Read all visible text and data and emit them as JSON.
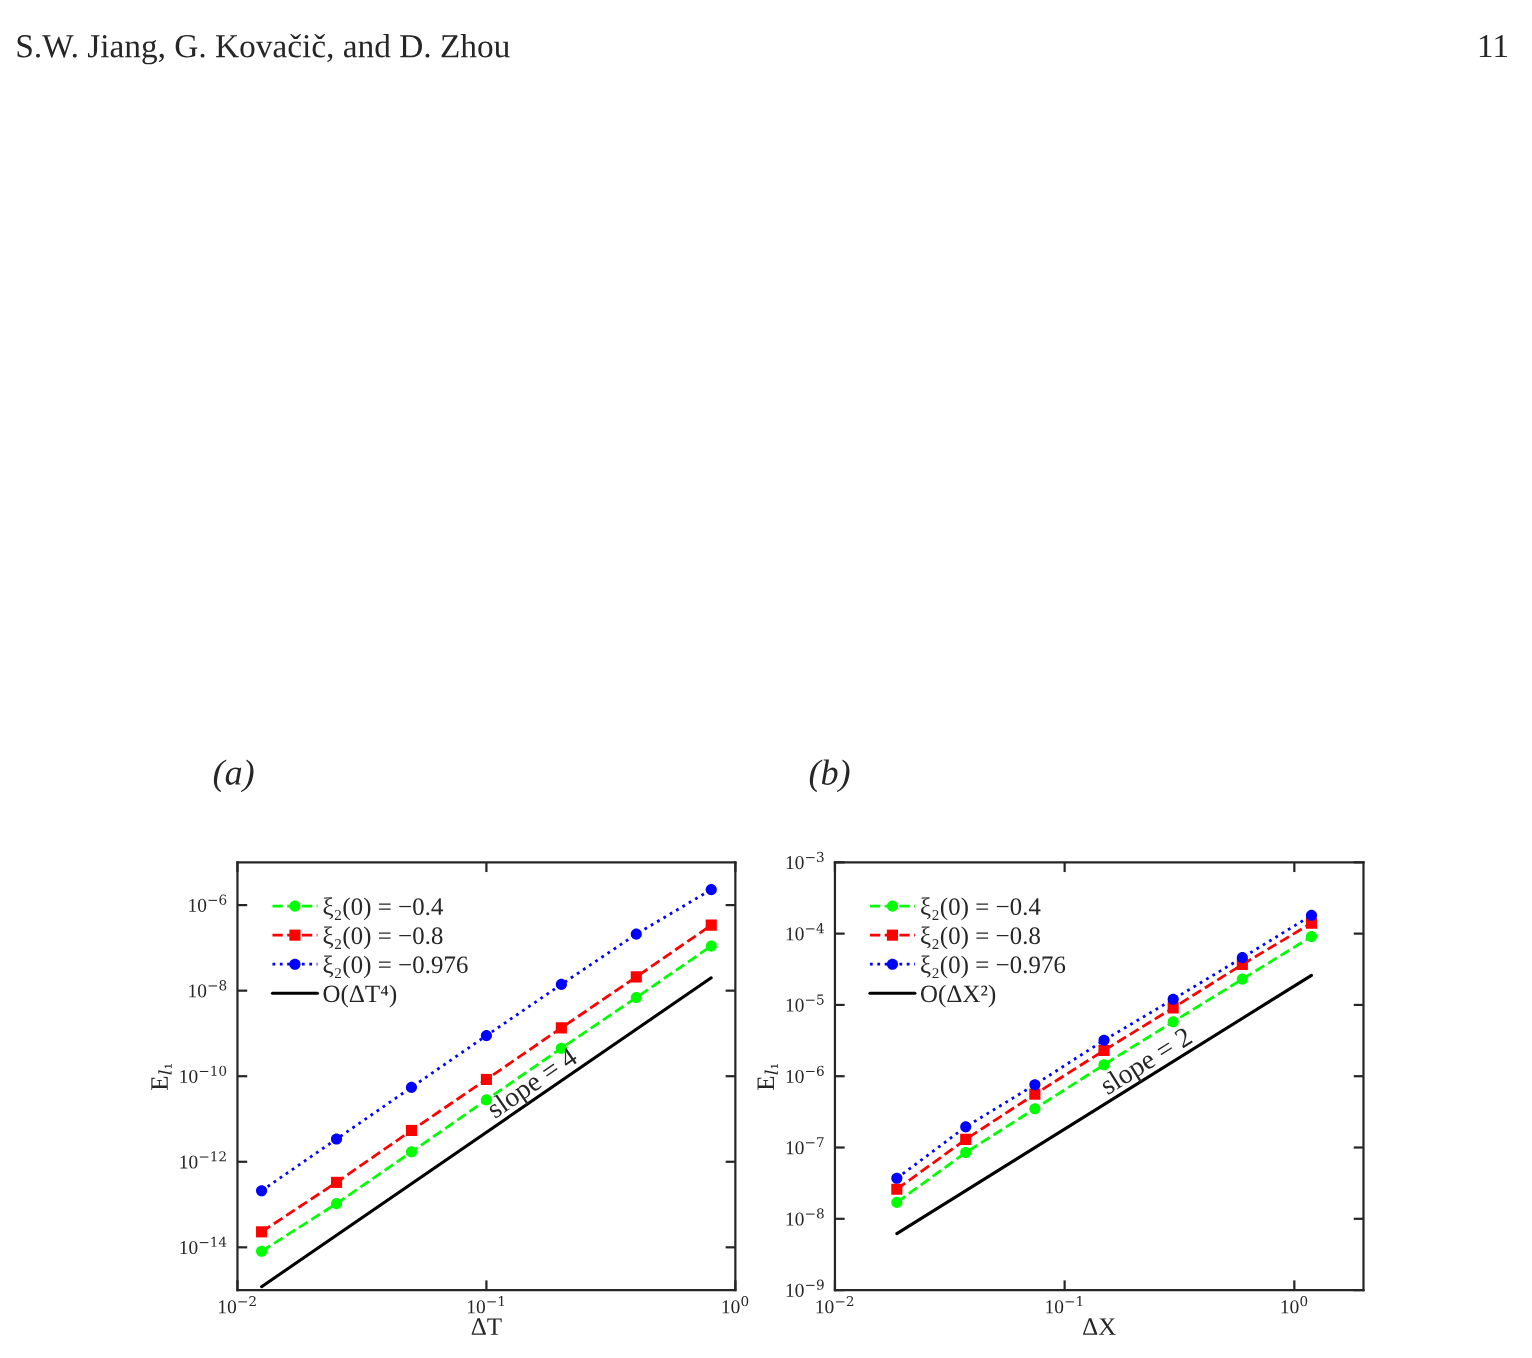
{
  "chart_data": [
    {
      "type": "line",
      "title": "(a)",
      "xlabel": "ΔT",
      "ylabel": "E$_{l₁}$",
      "log": "xy",
      "legend": "top left",
      "grid": false,
      "xlim": [
        0.01,
        1
      ],
      "ylim": [
        1e-15,
        1e-05
      ],
      "xticks": [
        {
          "value": 0.01,
          "label": "10$^{−2}$"
        },
        {
          "value": 0.1,
          "label": "10$^{−1}$"
        },
        {
          "value": 1,
          "label": "10$^{0}$"
        }
      ],
      "yticks": [
        {
          "value": 1e-14,
          "label": "10$^{−14}$"
        },
        {
          "value": 1e-12,
          "label": "10$^{−12}$"
        },
        {
          "value": 1e-10,
          "label": "10$^{−10}$"
        },
        {
          "value": 1e-08,
          "label": "10$^{−8}$"
        },
        {
          "value": 1e-06,
          "label": "10$^{−6}$"
        }
      ],
      "x": [
        0.0125,
        0.025,
        0.05,
        0.1,
        0.2,
        0.4,
        0.8
      ],
      "series": [
        {
          "name": "ξ₂(0) = −0.4",
          "color": "#00ff00",
          "marker": "circle",
          "line_style": "dashed",
          "values": [
            8.1e-15,
            1.05e-13,
            1.7e-12,
            2.8e-11,
            4.5e-10,
            6.9e-09,
            1.1e-07
          ]
        },
        {
          "name": "ξ₂(0) = −0.8",
          "color": "#ff0000",
          "marker": "square",
          "line_style": "dashed",
          "values": [
            2.3e-14,
            3.3e-13,
            5.4e-12,
            8.4e-11,
            1.35e-09,
            2.1e-08,
            3.4e-07
          ]
        },
        {
          "name": "ξ₂(0) = −0.976",
          "color": "#0000ff",
          "marker": "circle",
          "line_style": "dotted",
          "values": [
            2.1e-13,
            3.4e-12,
            5.5e-11,
            8.9e-10,
            1.4e-08,
            2.1e-07,
            2.3e-06
          ]
        },
        {
          "name": "O(ΔT⁴)",
          "color": "#000000",
          "marker": "none",
          "line_style": "solid",
          "x": [
            0.0125,
            0.8
          ],
          "values": [
            1.2e-15,
            2e-08
          ]
        }
      ],
      "annotations": [
        "slope = 4",
        "S.W. Jiang, G. Kovačič, and D. Zhou"
      ]
    },
    {
      "type": "line",
      "title": "(b)",
      "xlabel": "ΔX",
      "ylabel": "E$_{l₁}$",
      "log": "xy",
      "legend": "top left",
      "grid": false,
      "xlim": [
        0.01,
        2
      ],
      "ylim": [
        1e-09,
        0.001
      ],
      "xticks": [
        {
          "value": 0.01,
          "label": "10$^{−2}$"
        },
        {
          "value": 0.1,
          "label": "10$^{−1}$"
        },
        {
          "value": 1,
          "label": "10$^{0}$"
        }
      ],
      "yticks": [
        {
          "value": 1e-09,
          "label": "10$^{−9}$"
        },
        {
          "value": 1e-08,
          "label": "10$^{−8}$"
        },
        {
          "value": 1e-07,
          "label": "10$^{−7}$"
        },
        {
          "value": 1e-06,
          "label": "10$^{−6}$"
        },
        {
          "value": 1e-05,
          "label": "10$^{−5}$"
        },
        {
          "value": 0.0001,
          "label": "10$^{−4}$"
        },
        {
          "value": 0.001,
          "label": "10$^{−3}$"
        }
      ],
      "x": [
        0.0186,
        0.0371,
        0.0742,
        0.1484,
        0.2969,
        0.5938,
        1.1875
      ],
      "series": [
        {
          "name": "ξ₂(0) = −0.4",
          "color": "#00ff00",
          "marker": "circle",
          "line_style": "dashed",
          "values": [
            1.7e-08,
            8.5e-08,
            3.5e-07,
            1.45e-06,
            5.8e-06,
            2.3e-05,
            9.1e-05
          ]
        },
        {
          "name": "ξ₂(0) = −0.8",
          "color": "#ff0000",
          "marker": "square",
          "line_style": "dashed",
          "values": [
            2.6e-08,
            1.3e-07,
            5.6e-07,
            2.3e-06,
            9.1e-06,
            3.7e-05,
            0.00014
          ]
        },
        {
          "name": "ξ₂(0) = −0.976",
          "color": "#0000ff",
          "marker": "circle",
          "line_style": "dotted",
          "values": [
            3.7e-08,
            1.95e-07,
            7.6e-07,
            3.2e-06,
            1.2e-05,
            4.6e-05,
            0.00018
          ]
        },
        {
          "name": "O(ΔX²)",
          "color": "#000000",
          "marker": "none",
          "line_style": "solid",
          "x": [
            0.0186,
            1.1875
          ],
          "values": [
            6.2e-09,
            2.6e-05
          ]
        }
      ],
      "annotations": [
        "slope = 2",
        "11"
      ]
    }
  ]
}
